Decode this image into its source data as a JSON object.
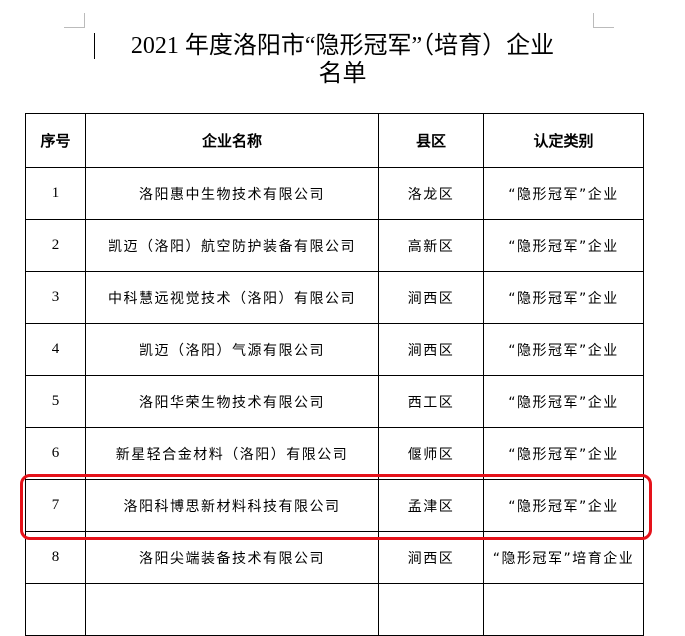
{
  "title_line1": "2021 年度洛阳市“隐形冠军”（培育）企业",
  "title_line2": "名单",
  "headers": [
    "序号",
    "企业名称",
    "县区",
    "认定类别"
  ],
  "rows": [
    [
      "1",
      "洛阳惠中生物技术有限公司",
      "洛龙区",
      "“隐形冠军”企业"
    ],
    [
      "2",
      "凯迈（洛阳）航空防护装备有限公司",
      "高新区",
      "“隐形冠军”企业"
    ],
    [
      "3",
      "中科慧远视觉技术（洛阳）有限公司",
      "涧西区",
      "“隐形冠军”企业"
    ],
    [
      "4",
      "凯迈（洛阳）气源有限公司",
      "涧西区",
      "“隐形冠军”企业"
    ],
    [
      "5",
      "洛阳华荣生物技术有限公司",
      "西工区",
      "“隐形冠军”企业"
    ],
    [
      "6",
      "新星轻合金材料（洛阳）有限公司",
      "偃师区",
      "“隐形冠军”企业"
    ],
    [
      "7",
      "洛阳科博思新材料科技有限公司",
      "孟津区",
      "“隐形冠军”企业"
    ],
    [
      "8",
      "洛阳尖端装备技术有限公司",
      "涧西区",
      "“隐形冠军”培育企业"
    ],
    [
      "",
      "",
      "",
      ""
    ]
  ],
  "highlight_color": "#e5121a",
  "highlighted_row": "7"
}
